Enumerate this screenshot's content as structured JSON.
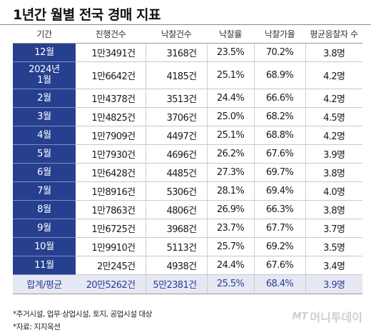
{
  "title": "1년간 월별 전국 경매 지표",
  "columns": [
    "기간",
    "진행건수",
    "낙찰건수",
    "낙찰률",
    "낙찰가율",
    "평균응찰자 수"
  ],
  "rows": [
    {
      "period": [
        "12월"
      ],
      "progress": "1만3491건",
      "won": "3168건",
      "win_rate": "23.5%",
      "price_rate": "70.2%",
      "bidders": "3.8명"
    },
    {
      "period": [
        "2024년",
        "1월"
      ],
      "progress": "1만6642건",
      "won": "4185건",
      "win_rate": "25.1%",
      "price_rate": "68.9%",
      "bidders": "4.2명"
    },
    {
      "period": [
        "2월"
      ],
      "progress": "1만4378건",
      "won": "3513건",
      "win_rate": "24.4%",
      "price_rate": "66.6%",
      "bidders": "4.2명"
    },
    {
      "period": [
        "3월"
      ],
      "progress": "1만4825건",
      "won": "3706건",
      "win_rate": "25.0%",
      "price_rate": "68.2%",
      "bidders": "4.5명"
    },
    {
      "period": [
        "4월"
      ],
      "progress": "1만7909건",
      "won": "4497건",
      "win_rate": "25.1%",
      "price_rate": "68.8%",
      "bidders": "4.2명"
    },
    {
      "period": [
        "5월"
      ],
      "progress": "1만7930건",
      "won": "4696건",
      "win_rate": "26.2%",
      "price_rate": "67.6%",
      "bidders": "3.9명"
    },
    {
      "period": [
        "6월"
      ],
      "progress": "1만6428건",
      "won": "4485건",
      "win_rate": "27.3%",
      "price_rate": "69.7%",
      "bidders": "3.8명"
    },
    {
      "period": [
        "7월"
      ],
      "progress": "1만8916건",
      "won": "5306건",
      "win_rate": "28.1%",
      "price_rate": "69.4%",
      "bidders": "4.0명"
    },
    {
      "period": [
        "8월"
      ],
      "progress": "1만7863건",
      "won": "4806건",
      "win_rate": "26.9%",
      "price_rate": "66.3%",
      "bidders": "3.8명"
    },
    {
      "period": [
        "9월"
      ],
      "progress": "1만6725건",
      "won": "3968건",
      "win_rate": "23.7%",
      "price_rate": "67.7%",
      "bidders": "3.7명"
    },
    {
      "period": [
        "10월"
      ],
      "progress": "1만9910건",
      "won": "5113건",
      "win_rate": "25.7%",
      "price_rate": "69.2%",
      "bidders": "3.5명"
    },
    {
      "period": [
        "11월"
      ],
      "progress": "2만245건",
      "won": "4938건",
      "win_rate": "24.4%",
      "price_rate": "67.6%",
      "bidders": "3.4명"
    }
  ],
  "total": {
    "period": "합계/평균",
    "progress": "20만5262건",
    "won": "5만2381건",
    "win_rate": "25.5%",
    "price_rate": "68.4%",
    "bidders": "3.9명"
  },
  "notes": [
    "*주거시설, 업무·상업시설, 토지, 공업시설 대상",
    "*자료: 지지옥션"
  ],
  "watermark": {
    "mt": "MT",
    "text": "머니투데이"
  },
  "colors": {
    "header_band": "#263f8e",
    "total_bg": "#e5e8f3",
    "total_text": "#2b3f96"
  }
}
